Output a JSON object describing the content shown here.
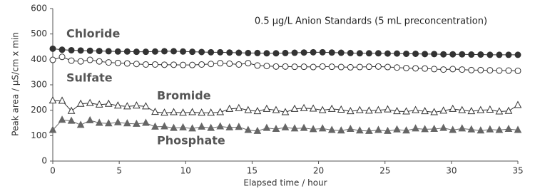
{
  "chart_data": {
    "type": "line",
    "title": "0.5 µg/L Anion Standards  (5 mL preconcentration)",
    "x_label": "Elapsed time / hour",
    "y_label": "Peak area / µS/cm x min",
    "x": [
      0,
      0.7,
      1.4,
      2.1,
      2.8,
      3.5,
      4.2,
      4.9,
      5.6,
      6.3,
      7,
      7.7,
      8.4,
      9.1,
      9.8,
      10.5,
      11.2,
      11.9,
      12.6,
      13.3,
      14,
      14.7,
      15.4,
      16.1,
      16.8,
      17.5,
      18.2,
      18.9,
      19.6,
      20.3,
      21,
      21.7,
      22.4,
      23.1,
      23.8,
      24.5,
      25.2,
      25.9,
      26.6,
      27.3,
      28,
      28.7,
      29.4,
      30.1,
      30.8,
      31.5,
      32.2,
      32.9,
      33.6,
      34.3,
      35
    ],
    "series": [
      {
        "name": "Chloride",
        "color": "#333333",
        "marker": "circle-filled",
        "values": [
          442,
          438,
          436,
          435,
          434,
          433,
          432,
          431,
          431,
          430,
          430,
          431,
          432,
          432,
          431,
          430,
          429,
          428,
          428,
          427,
          426,
          425,
          425,
          424,
          424,
          425,
          426,
          427,
          428,
          428,
          427,
          426,
          425,
          424,
          424,
          424,
          423,
          423,
          422,
          422,
          421,
          421,
          420,
          420,
          420,
          419,
          419,
          418,
          418,
          418,
          418
        ]
      },
      {
        "name": "Sulfate",
        "color": "#333333",
        "marker": "circle-open",
        "values": [
          398,
          410,
          395,
          392,
          398,
          392,
          388,
          386,
          384,
          382,
          380,
          380,
          379,
          379,
          378,
          378,
          380,
          382,
          385,
          383,
          380,
          385,
          376,
          374,
          372,
          372,
          371,
          371,
          370,
          372,
          371,
          370,
          369,
          370,
          371,
          372,
          370,
          368,
          366,
          365,
          364,
          362,
          360,
          362,
          360,
          358,
          358,
          357,
          356,
          356,
          355
        ]
      },
      {
        "name": "Bromide",
        "color": "#333333",
        "marker": "triangle-open",
        "values": [
          238,
          237,
          197,
          225,
          228,
          222,
          225,
          218,
          215,
          218,
          215,
          193,
          190,
          192,
          190,
          192,
          190,
          190,
          192,
          205,
          208,
          200,
          196,
          205,
          200,
          192,
          205,
          208,
          206,
          200,
          205,
          202,
          196,
          200,
          198,
          200,
          203,
          196,
          195,
          200,
          196,
          192,
          198,
          205,
          200,
          196,
          200,
          202,
          195,
          197,
          220
        ]
      },
      {
        "name": "Phosphate",
        "color": "#666666",
        "marker": "triangle-filled",
        "values": [
          122,
          162,
          158,
          142,
          160,
          150,
          148,
          152,
          148,
          146,
          150,
          135,
          136,
          130,
          132,
          128,
          135,
          130,
          136,
          132,
          134,
          122,
          118,
          130,
          126,
          132,
          128,
          130,
          125,
          128,
          122,
          120,
          126,
          120,
          118,
          122,
          118,
          124,
          120,
          128,
          125,
          126,
          130,
          122,
          128,
          124,
          120,
          124,
          122,
          126,
          122
        ]
      }
    ],
    "xlim": [
      0,
      35
    ],
    "xticks": [
      0,
      5,
      10,
      15,
      20,
      25,
      30,
      35
    ],
    "ylim": [
      0,
      600
    ],
    "yticks": [
      0,
      100,
      200,
      300,
      400,
      500,
      600
    ],
    "grid": false
  }
}
